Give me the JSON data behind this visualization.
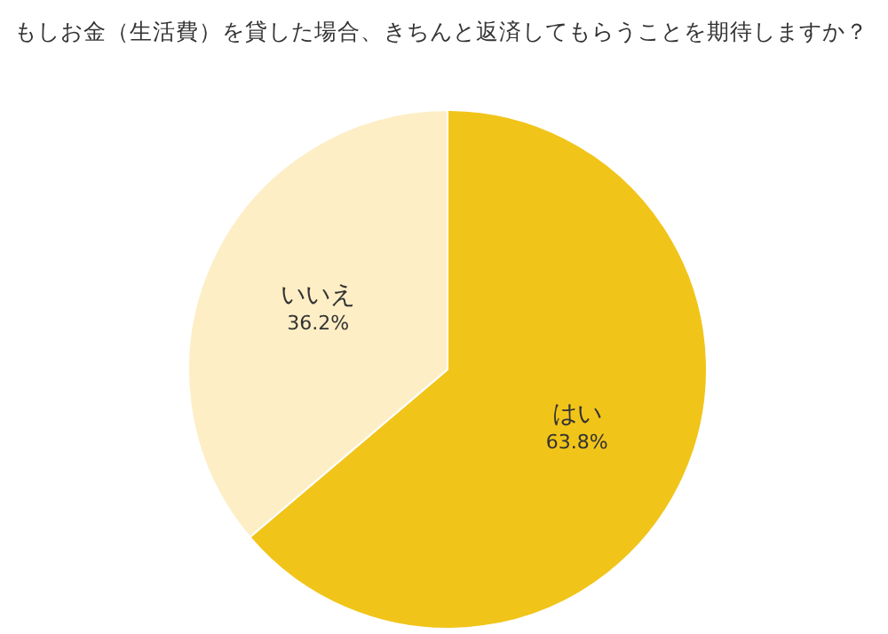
{
  "chart_data": {
    "type": "pie",
    "title": "もしお金（生活費）を貸した場合、きちんと返済してもらうことを期待しますか？",
    "categories": [
      "はい",
      "いいえ"
    ],
    "values": [
      63.8,
      36.2
    ],
    "colors": [
      "#f1c419",
      "#fdeec6"
    ],
    "value_labels": [
      "63.8%",
      "36.2%"
    ]
  }
}
